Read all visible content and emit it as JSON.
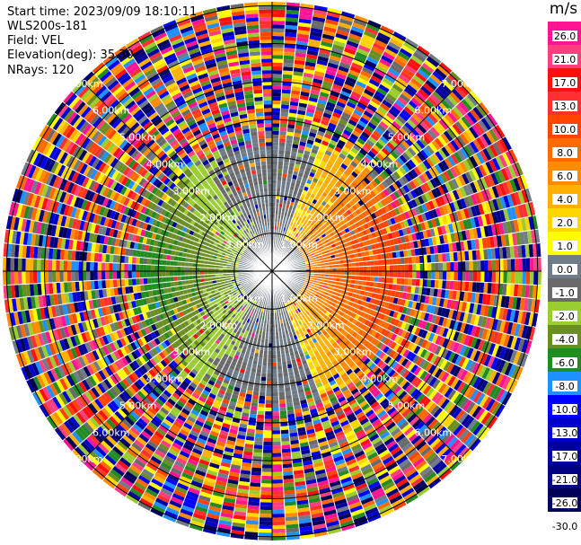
{
  "header": {
    "start_time": "Start time: 2023/09/09 18:10:11",
    "instrument": "WLS200s-181",
    "field": "Field: VEL",
    "elevation": "Elevation(deg): 35.30",
    "nrays": "NRays: 120"
  },
  "chart_data": {
    "type": "heatmap",
    "subtype": "polar-ppi",
    "field": "VEL",
    "units": "m/s",
    "elevation_deg": 35.3,
    "n_rays": 120,
    "range_rings_km": [
      1.0,
      2.0,
      3.0,
      4.0,
      5.0,
      6.0,
      7.0
    ],
    "range_ring_labels": [
      "1.00km",
      "2.00km",
      "3.00km",
      "4.00km",
      "5.00km",
      "6.00km",
      "7.00km"
    ],
    "colorbar": {
      "ticks": [
        "26.0",
        "21.0",
        "17.0",
        "13.0",
        "10.0",
        "8.0",
        "6.0",
        "4.0",
        "2.0",
        "1.0",
        "0.0",
        "-1.0",
        "-2.0",
        "-4.0",
        "-6.0",
        "-8.0",
        "-10.0",
        "-13.0",
        "-17.0",
        "-21.0",
        "-26.0",
        "-30.0"
      ],
      "colors": [
        "#ff1493",
        "#ff3f80",
        "#ff1010",
        "#ff3030",
        "#ff4500",
        "#ff6a00",
        "#ff8c00",
        "#ffb000",
        "#ffd700",
        "#ffff00",
        "#6f7d8a",
        "#6a6a6a",
        "#9acd32",
        "#6b8e23",
        "#228b22",
        "#1e90ff",
        "#0000ff",
        "#0000cd",
        "#0000a0",
        "#000080",
        "#00005a"
      ]
    },
    "pattern": {
      "near_range_km": 3.2,
      "positive_sector_deg": [
        20,
        160
      ],
      "negative_sector_deg": [
        200,
        340
      ],
      "near_zero_core_km": 0.9
    }
  }
}
